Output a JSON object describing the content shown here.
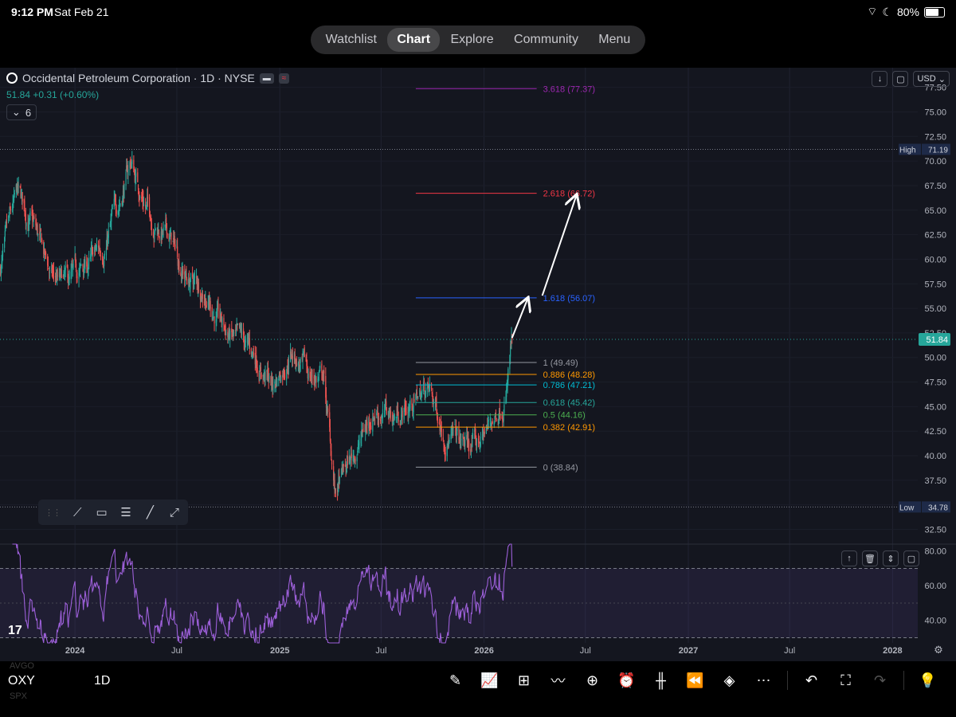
{
  "status_bar": {
    "time": "9:12 PM",
    "date": "Sat Feb 21",
    "battery": "80%"
  },
  "nav_tabs": [
    {
      "label": "Watchlist"
    },
    {
      "label": "Chart",
      "active": true
    },
    {
      "label": "Explore"
    },
    {
      "label": "Community"
    },
    {
      "label": "Menu"
    }
  ],
  "legend": {
    "title": "Occidental Petroleum Corporation · 1D · NYSE",
    "price_change": "51.84 +0.31 (+0.60%)",
    "indicator_count": "6",
    "chip1": "▬",
    "chip2": "≈"
  },
  "top_right": {
    "currency": "USD"
  },
  "colors": {
    "background": "#14161f",
    "up": "#26a69a",
    "down": "#ef5350",
    "rsi": "#9c5fd8",
    "fib_3618": "#9c27b0",
    "fib_2618": "#f23645",
    "fib_1618": "#2962ff"
  },
  "chart_data": {
    "type": "candlestick",
    "symbol": "OXY",
    "interval": "1D",
    "y_axis": {
      "ticks": [
        "77.50",
        "75.00",
        "72.50",
        "70.00",
        "67.50",
        "65.00",
        "62.50",
        "60.00",
        "57.50",
        "55.00",
        "52.50",
        "50.00",
        "47.50",
        "45.00",
        "42.50",
        "40.00",
        "37.50",
        "35.00",
        "32.50"
      ],
      "ylim": [
        31.0,
        79.5
      ]
    },
    "x_axis": {
      "ticks": [
        "2024",
        "Jul",
        "2025",
        "Jul",
        "2026",
        "Jul",
        "2027",
        "Jul",
        "2028"
      ]
    },
    "price_path": [
      [
        "2023-08-20",
        59
      ],
      [
        "2023-09-20",
        66
      ],
      [
        "2023-10-20",
        63
      ],
      [
        "2023-11-20",
        58
      ],
      [
        "2023-12-20",
        57
      ],
      [
        "2024-01-20",
        59
      ],
      [
        "2024-02-20",
        61
      ],
      [
        "2024-03-20",
        66
      ],
      [
        "2024-04-10",
        70
      ],
      [
        "2024-04-20",
        68
      ],
      [
        "2024-05-20",
        64
      ],
      [
        "2024-06-20",
        62
      ],
      [
        "2024-07-20",
        58
      ],
      [
        "2024-08-20",
        57
      ],
      [
        "2024-09-20",
        53
      ],
      [
        "2024-10-20",
        51
      ],
      [
        "2024-11-20",
        50
      ],
      [
        "2024-12-20",
        47
      ],
      [
        "2025-01-20",
        51
      ],
      [
        "2025-02-20",
        48
      ],
      [
        "2025-03-20",
        48
      ],
      [
        "2025-04-10",
        36
      ],
      [
        "2025-05-20",
        41
      ],
      [
        "2025-06-20",
        45
      ],
      [
        "2025-07-20",
        44
      ],
      [
        "2025-08-20",
        45
      ],
      [
        "2025-09-20",
        47
      ],
      [
        "2025-10-20",
        43
      ],
      [
        "2025-11-20",
        41
      ],
      [
        "2025-12-20",
        41
      ],
      [
        "2026-01-20",
        44
      ],
      [
        "2026-02-10",
        47
      ],
      [
        "2026-02-20",
        51.84
      ]
    ],
    "last_price": "51.84",
    "high": {
      "label": "High",
      "value": "71.19"
    },
    "low": {
      "label": "Low",
      "value": "34.78"
    },
    "fib_levels": [
      {
        "ratio": 3.618,
        "price": 77.37,
        "label": "3.618 (77.37)",
        "color": "#9c27b0"
      },
      {
        "ratio": 2.618,
        "price": 66.72,
        "label": "2.618 (66.72)",
        "color": "#f23645"
      },
      {
        "ratio": 1.618,
        "price": 56.07,
        "label": "1.618 (56.07)",
        "color": "#2962ff"
      },
      {
        "ratio": 1,
        "price": 49.49,
        "label": "1 (49.49)",
        "color": "#9598a1"
      },
      {
        "ratio": 0.886,
        "price": 48.28,
        "label": "0.886 (48.28)",
        "color": "#ff9800"
      },
      {
        "ratio": 0.786,
        "price": 47.21,
        "label": "0.786 (47.21)",
        "color": "#00bcd4"
      },
      {
        "ratio": 0.618,
        "price": 45.42,
        "label": "0.618 (45.42)",
        "color": "#26a69a"
      },
      {
        "ratio": 0.5,
        "price": 44.16,
        "label": "0.5 (44.16)",
        "color": "#4caf50"
      },
      {
        "ratio": 0.382,
        "price": 42.91,
        "label": "0.382 (42.91)",
        "color": "#ff9800"
      },
      {
        "ratio": 0,
        "price": 38.84,
        "label": "0 (38.84)",
        "color": "#9598a1"
      }
    ],
    "annotation_arrows": [
      {
        "from": [
          "2026-02-20",
          52.0
        ],
        "to": [
          "2026-03-20",
          56.0
        ]
      },
      {
        "from": [
          "2026-04-15",
          56.3
        ],
        "to": [
          "2026-06-15",
          66.5
        ]
      }
    ],
    "rsi": {
      "ticks": [
        "80.00",
        "60.00",
        "40.00"
      ],
      "ylim": [
        27,
        84
      ],
      "upper_band": 70,
      "lower_band": 30,
      "last": 71
    }
  },
  "bottom_bar": {
    "ticker": "OXY",
    "interval": "1D",
    "ghost_above": "AVGO",
    "ghost_below": "SPX"
  }
}
